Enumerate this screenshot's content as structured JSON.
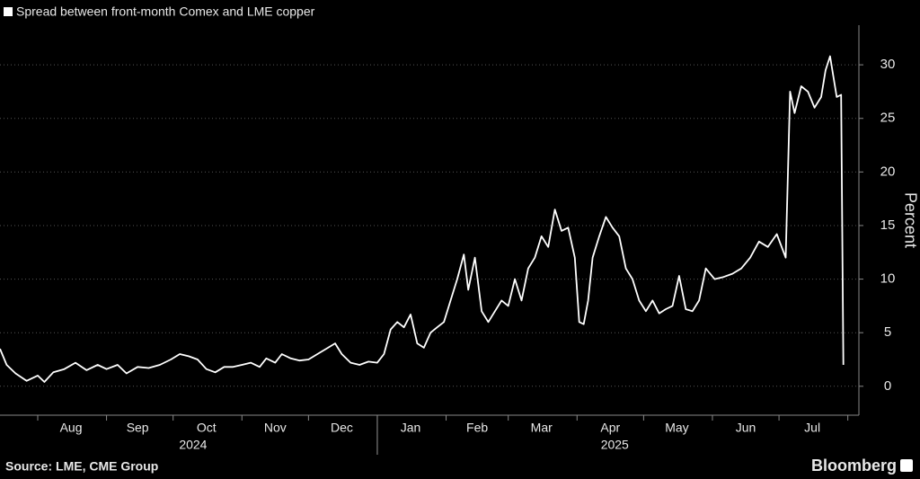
{
  "chart_data": {
    "type": "line",
    "title": "Spread between front-month Comex and LME copper",
    "y_label": "Percent",
    "source": "Source: LME, CME Group",
    "brand": "Bloomberg",
    "color": "#ffffff",
    "grid": true,
    "x": [
      -17,
      -14,
      -10,
      -5,
      0,
      3,
      7,
      12,
      17,
      22,
      27,
      31,
      36,
      40,
      45,
      50,
      55,
      60,
      64,
      68,
      72,
      76,
      80,
      84,
      88,
      92,
      96,
      100,
      103,
      107,
      110,
      114,
      118,
      122,
      126,
      130,
      134,
      137,
      141,
      145,
      149,
      153,
      156,
      159,
      162,
      165,
      168,
      171,
      174,
      177,
      180,
      183,
      186,
      189,
      192,
      194,
      197,
      200,
      203,
      206,
      209,
      212,
      215,
      218,
      221,
      224,
      227,
      230,
      233,
      236,
      239,
      242,
      244,
      246,
      248,
      250,
      253,
      256,
      259,
      262,
      265,
      268,
      271,
      274,
      277,
      280,
      283,
      286,
      289,
      292,
      295,
      298,
      301,
      305,
      309,
      313,
      317,
      321,
      325,
      329,
      333,
      337,
      339,
      341,
      344,
      347,
      350,
      353,
      355,
      357,
      360,
      362,
      363
    ],
    "values": [
      3.5,
      2.0,
      1.2,
      0.5,
      1.0,
      0.4,
      1.3,
      1.6,
      2.2,
      1.5,
      2.0,
      1.6,
      2.0,
      1.2,
      1.8,
      1.7,
      2.0,
      2.5,
      3.0,
      2.8,
      2.5,
      1.6,
      1.3,
      1.8,
      1.8,
      2.0,
      2.2,
      1.8,
      2.6,
      2.2,
      3.0,
      2.6,
      2.4,
      2.5,
      3.0,
      3.5,
      4.0,
      3.0,
      2.2,
      2.0,
      2.3,
      2.2,
      3.0,
      5.3,
      6.0,
      5.5,
      6.7,
      4.0,
      3.6,
      5.0,
      5.5,
      6.0,
      8.0,
      10.0,
      12.3,
      9.0,
      12.0,
      7.0,
      6.0,
      7.0,
      8.0,
      7.5,
      10.0,
      8.0,
      11.0,
      12.0,
      14.0,
      13.0,
      16.5,
      14.5,
      14.8,
      12.0,
      6.0,
      5.8,
      8.0,
      12.0,
      14.0,
      15.8,
      14.8,
      14.0,
      11.0,
      10.0,
      8.0,
      7.0,
      8.0,
      6.8,
      7.2,
      7.5,
      10.3,
      7.2,
      7.0,
      8.0,
      11.0,
      10.0,
      10.2,
      10.5,
      11.0,
      12.0,
      13.5,
      13.0,
      14.2,
      12.0,
      27.5,
      25.5,
      28.0,
      27.5,
      26.0,
      27.0,
      29.5,
      30.8,
      27.0,
      27.2,
      2.0
    ],
    "xlim": [
      -17,
      370
    ],
    "xticks": [
      0,
      31,
      61,
      92,
      122,
      153,
      184,
      212,
      243,
      273,
      304,
      334,
      365
    ],
    "x_labels": [
      {
        "value": 15,
        "label": "Aug"
      },
      {
        "value": 45,
        "label": "Sep"
      },
      {
        "value": 76,
        "label": "Oct"
      },
      {
        "value": 107,
        "label": "Nov"
      },
      {
        "value": 137,
        "label": "Dec"
      },
      {
        "value": 168,
        "label": "Jan"
      },
      {
        "value": 198,
        "label": "Feb"
      },
      {
        "value": 227,
        "label": "Mar"
      },
      {
        "value": 258,
        "label": "Apr"
      },
      {
        "value": 288,
        "label": "May"
      },
      {
        "value": 319,
        "label": "Jun"
      },
      {
        "value": 349,
        "label": "Jul"
      }
    ],
    "year_labels": [
      {
        "value": 70,
        "label": "2024"
      },
      {
        "value": 260,
        "label": "2025"
      }
    ],
    "year_break": 153,
    "ylim": [
      -2.7,
      33.7
    ],
    "yticks": [
      0,
      5,
      10,
      15,
      20,
      25,
      30
    ]
  }
}
